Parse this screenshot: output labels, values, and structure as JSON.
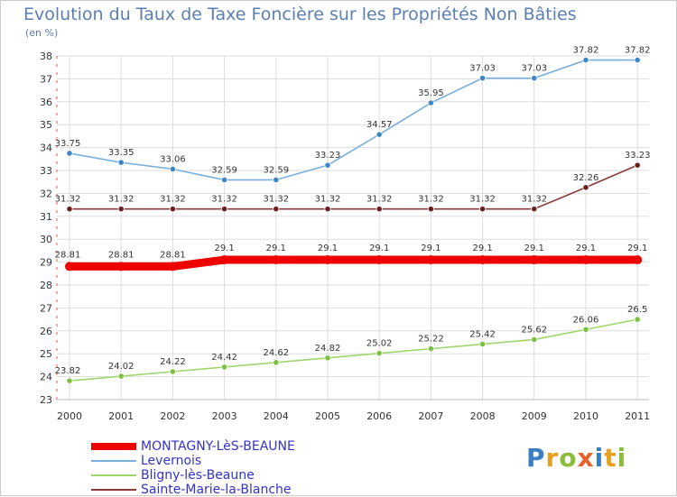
{
  "title": "Evolution du Taux de Taxe Foncière sur les Propriétés Non Bâties",
  "unit": "(en %)",
  "logo": {
    "text": "Proxiti",
    "colors": [
      "#3a7fc4",
      "#e8a020",
      "#8bbd3a",
      "#e8602a",
      "#3a7fc4",
      "#e8a020",
      "#8bbd3a"
    ]
  },
  "chart_data": {
    "type": "line",
    "categories": [
      "2000",
      "2001",
      "2002",
      "2003",
      "2004",
      "2005",
      "2006",
      "2007",
      "2008",
      "2009",
      "2010",
      "2011"
    ],
    "ylim": [
      23,
      38
    ],
    "yticks": [
      "23",
      "24",
      "25",
      "26",
      "27",
      "28",
      "29",
      "30",
      "31",
      "32",
      "33",
      "34",
      "35",
      "36",
      "37",
      "38"
    ],
    "grid": true,
    "series": [
      {
        "name": "MONTAGNY-LèS-BEAUNE",
        "color": "#ee0000",
        "marker": "#ee0000",
        "bold": true,
        "values": [
          28.81,
          28.81,
          28.81,
          29.1,
          29.1,
          29.1,
          29.1,
          29.1,
          29.1,
          29.1,
          29.1,
          29.1
        ],
        "labels": [
          "28.81",
          "28.81",
          "28.81",
          "29.1",
          "29.1",
          "29.1",
          "29.1",
          "29.1",
          "29.1",
          "29.1",
          "29.1",
          "29.1"
        ]
      },
      {
        "name": "Levernois",
        "color": "#7aaedb",
        "marker": "#3d85c6",
        "bold": false,
        "values": [
          33.75,
          33.35,
          33.06,
          32.59,
          32.59,
          33.23,
          34.57,
          35.95,
          37.03,
          37.03,
          37.82,
          37.82
        ],
        "labels": [
          "33.75",
          "33.35",
          "33.06",
          "32.59",
          "32.59",
          "33.23",
          "34.57",
          "35.95",
          "37.03",
          "37.03",
          "37.82",
          "37.82"
        ]
      },
      {
        "name": "Bligny-lès-Beaune",
        "color": "#9fd66b",
        "marker": "#7cc242",
        "bold": false,
        "values": [
          23.82,
          24.02,
          24.22,
          24.42,
          24.62,
          24.82,
          25.02,
          25.22,
          25.42,
          25.62,
          26.06,
          26.5
        ],
        "labels": [
          "23.82",
          "24.02",
          "24.22",
          "24.42",
          "24.62",
          "24.82",
          "25.02",
          "25.22",
          "25.42",
          "25.62",
          "26.06",
          "26.5"
        ]
      },
      {
        "name": "Sainte-Marie-la-Blanche",
        "color": "#8b3a3a",
        "marker": "#6b1f1f",
        "bold": false,
        "values": [
          31.32,
          31.32,
          31.32,
          31.32,
          31.32,
          31.32,
          31.32,
          31.32,
          31.32,
          31.32,
          32.26,
          33.23
        ],
        "labels": [
          "31.32",
          "31.32",
          "31.32",
          "31.32",
          "31.32",
          "31.32",
          "31.32",
          "31.32",
          "31.32",
          "31.32",
          "32.26",
          "33.23"
        ]
      }
    ]
  }
}
